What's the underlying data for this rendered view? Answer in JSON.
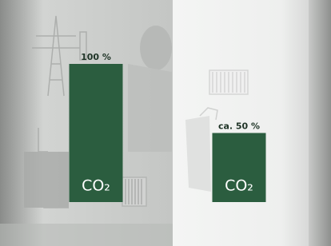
{
  "chart_data": {
    "type": "bar",
    "categories": [
      null,
      null
    ],
    "values": [
      100,
      50
    ],
    "value_labels": [
      "100 %",
      "ca. 50 %"
    ],
    "bar_text": [
      "CO₂",
      "CO₂"
    ],
    "color": "#2b5d3f",
    "ylim": [
      0,
      100
    ]
  }
}
